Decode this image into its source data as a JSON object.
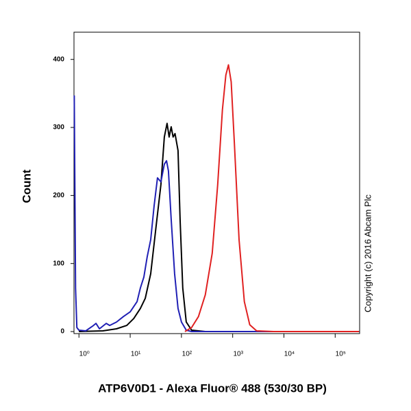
{
  "chart_data": {
    "type": "line",
    "x_label": "ATP6V0D1 - Alexa Fluor® 488 (530/30 BP)",
    "y_label": "Count",
    "note": "Copyright (c) 2016 Abcam Plc",
    "xscale": "log",
    "xlim": [
      0.8,
      300000
    ],
    "ylim": [
      -3,
      440
    ],
    "xticks": [
      {
        "value": 1,
        "label": "10⁰"
      },
      {
        "value": 10,
        "label": "10¹"
      },
      {
        "value": 100,
        "label": "10²"
      },
      {
        "value": 1000,
        "label": "10³"
      },
      {
        "value": 10000,
        "label": "10⁴"
      },
      {
        "value": 100000,
        "label": "10⁵"
      }
    ],
    "yticks": [
      0,
      100,
      200,
      300,
      400
    ],
    "series": [
      {
        "color": "#000000",
        "x": [
          1,
          2.93,
          5.41,
          8.58,
          11.7,
          15.8,
          19.7,
          25.1,
          32.0,
          39.8,
          46.4,
          52.5,
          57.5,
          63.1,
          68.7,
          75.0,
          85.8,
          94.1,
          106,
          124,
          158,
          292,
          292000
        ],
        "values": [
          0,
          1,
          4,
          9,
          19,
          34,
          49,
          85,
          155,
          216,
          286,
          306,
          286,
          301,
          286,
          291,
          266,
          165,
          64,
          14,
          2,
          0,
          0
        ]
      },
      {
        "color": "#1f1fb4",
        "x": [
          0.81,
          0.86,
          0.91,
          1,
          1.36,
          1.85,
          2.15,
          2.51,
          3.41,
          3.98,
          5.41,
          7.36,
          10,
          13.6,
          15.8,
          18.5,
          21.5,
          25.1,
          29.3,
          34.1,
          39.8,
          46.4,
          51.1,
          55.7,
          63.1,
          73.6,
          85.8,
          100,
          124,
          158,
          292000
        ],
        "values": [
          347,
          64,
          6,
          2,
          1,
          8,
          12,
          4,
          12,
          9,
          14,
          22,
          29,
          44,
          64,
          80,
          110,
          135,
          185,
          226,
          220,
          246,
          251,
          236,
          165,
          85,
          34,
          14,
          2,
          0,
          0
        ]
      },
      {
        "color": "#e02020",
        "x": [
          117,
          158,
          215,
          292,
          398,
          510,
          631,
          736,
          827,
          934,
          1081,
          1334,
          1687,
          2154,
          2929,
          6310,
          292000
        ],
        "values": [
          0,
          6,
          22,
          54,
          115,
          216,
          326,
          377,
          392,
          367,
          276,
          135,
          44,
          10,
          1,
          0,
          0
        ]
      }
    ]
  }
}
